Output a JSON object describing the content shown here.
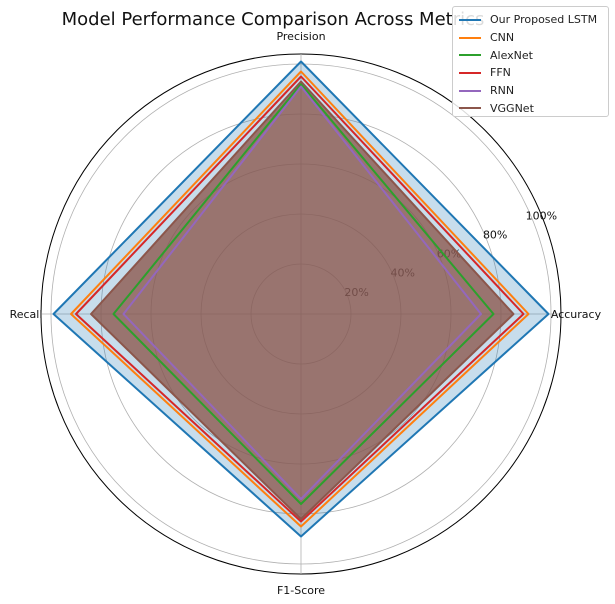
{
  "chart_data": {
    "type": "radar",
    "title": "Model Performance Comparison Across Metrics",
    "axes": [
      "Accuracy",
      "Precision",
      "Recall",
      "F1-Score"
    ],
    "radial_range": [
      0,
      100
    ],
    "radial_ticks": [
      "20%",
      "40%",
      "60%",
      "80%",
      "100%"
    ],
    "grid": true,
    "legend_position": "top-right",
    "series": [
      {
        "name": "Our Proposed LSTM",
        "color": "#1f77b4",
        "values": [
          99,
          101,
          99,
          89
        ],
        "filled": true
      },
      {
        "name": "CNN",
        "color": "#ff7f0e",
        "values": [
          91,
          97,
          92,
          85
        ]
      },
      {
        "name": "AlexNet",
        "color": "#2ca02c",
        "values": [
          77,
          92,
          75,
          76
        ]
      },
      {
        "name": "FFN",
        "color": "#d62728",
        "values": [
          89,
          95,
          90,
          83
        ]
      },
      {
        "name": "RNN",
        "color": "#9467bd",
        "values": [
          72,
          91,
          71,
          74
        ]
      },
      {
        "name": "VGGNet",
        "color": "#8c564b",
        "values": [
          85,
          93,
          84,
          82
        ],
        "filled": true
      }
    ]
  }
}
